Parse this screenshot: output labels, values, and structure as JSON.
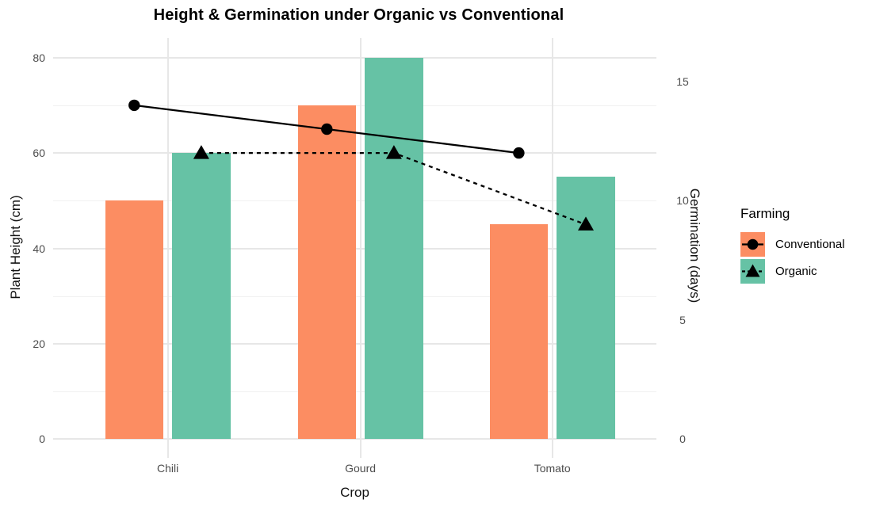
{
  "chart_data": {
    "type": "bar+line-dual-axis",
    "title": "Height & Germination under Organic vs Conventional",
    "xlabel": "Crop",
    "ylabel_left": "Plant Height (cm)",
    "ylabel_right": "Germination (days)",
    "categories": [
      "Chili",
      "Gourd",
      "Tomato"
    ],
    "bar_series": [
      {
        "name": "Conventional",
        "color": "#FC8D62",
        "values": [
          50,
          70,
          45
        ],
        "axis": "left"
      },
      {
        "name": "Organic",
        "color": "#66C2A5",
        "values": [
          60,
          80,
          55
        ],
        "axis": "left"
      }
    ],
    "line_series": [
      {
        "name": "Conventional",
        "color": "#000000",
        "marker": "circle",
        "linestyle": "solid",
        "values": [
          14,
          13,
          12
        ],
        "axis": "right"
      },
      {
        "name": "Organic",
        "color": "#000000",
        "marker": "triangle",
        "linestyle": "dashed",
        "values": [
          12,
          12,
          9
        ],
        "axis": "right"
      }
    ],
    "yticks_left": [
      0,
      20,
      40,
      60,
      80
    ],
    "yticks_minor_left": [
      10,
      30,
      50,
      70
    ],
    "yticks_right": [
      0,
      5,
      10,
      15
    ],
    "ylim_left": [
      0,
      84
    ],
    "right_axis_equals_left_divided_by": 5,
    "grid": "major-and-minor, light gray on white, no axis lines",
    "legend": {
      "title": "Farming",
      "position": "right-middle",
      "entries": [
        {
          "label": "Conventional",
          "swatch_color": "#FC8D62",
          "symbol": "solid-line-circle"
        },
        {
          "label": "Organic",
          "swatch_color": "#66C2A5",
          "symbol": "dashed-line-triangle"
        }
      ]
    }
  }
}
